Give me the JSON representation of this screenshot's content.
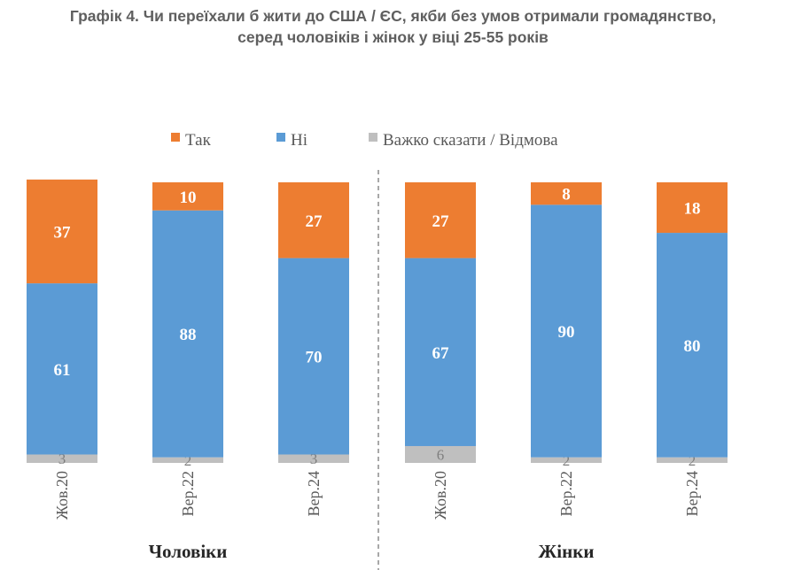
{
  "title": {
    "line1": "Графік 4. Чи переїхали б жити до США / ЄС, якби без умов отримали громадянство,",
    "line2": "серед чоловіків і жінок у віці 25-55 років"
  },
  "chart_data": {
    "type": "bar",
    "stacked": true,
    "legend_position": "top",
    "series": [
      {
        "name": "Так",
        "color": "#ED7D31",
        "values": [
          37,
          10,
          27,
          27,
          8,
          18
        ]
      },
      {
        "name": "Ні",
        "color": "#5B9BD5",
        "values": [
          61,
          88,
          70,
          67,
          90,
          80
        ]
      },
      {
        "name": "Важко сказати / Відмова",
        "color": "#BFBFBF",
        "values": [
          3,
          2,
          3,
          6,
          2,
          2
        ]
      }
    ],
    "categories": [
      "Жов.20",
      "Вер.22",
      "Вер.24",
      "Жов.20",
      "Вер.22",
      "Вер.24"
    ],
    "groups": [
      {
        "label": "Чоловіки",
        "indices": [
          0,
          1,
          2
        ]
      },
      {
        "label": "Жінки",
        "indices": [
          3,
          4,
          5
        ]
      }
    ],
    "ylim": [
      0,
      100
    ],
    "grid": false
  }
}
